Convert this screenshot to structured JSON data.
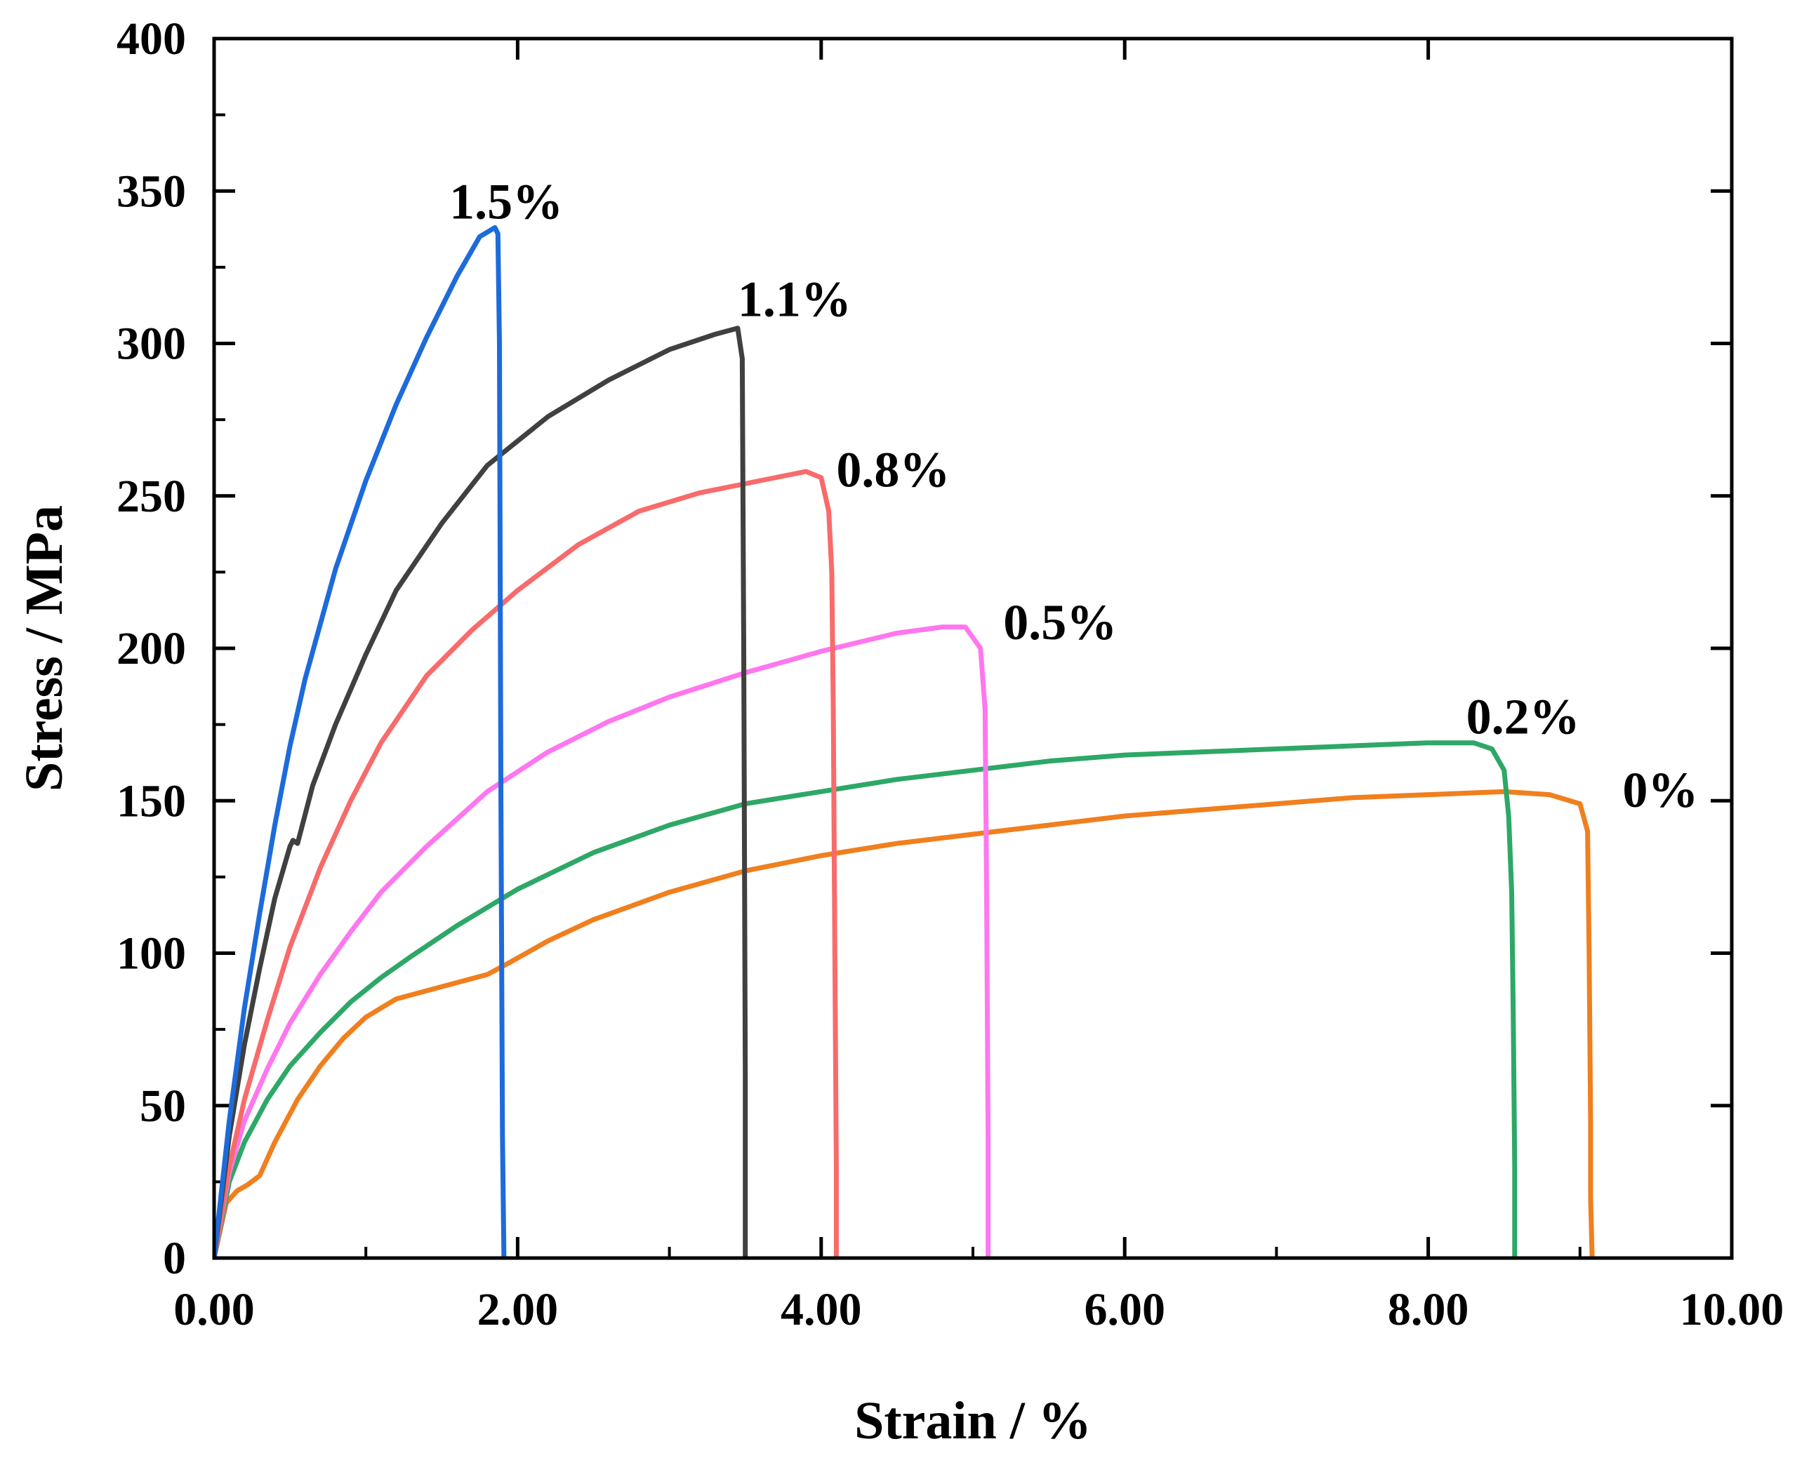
{
  "chart_data": {
    "type": "line",
    "title": "",
    "xlabel": "Strain / %",
    "ylabel": "Stress / MPa",
    "xlim": [
      0,
      10
    ],
    "ylim": [
      0,
      400
    ],
    "x_ticks": [
      0,
      2,
      4,
      6,
      8,
      10
    ],
    "x_tick_labels": [
      "0.00",
      "2.00",
      "4.00",
      "6.00",
      "8.00",
      "10.00"
    ],
    "y_ticks": [
      0,
      50,
      100,
      150,
      200,
      250,
      300,
      350,
      400
    ],
    "y_tick_labels": [
      "0",
      "50",
      "100",
      "150",
      "200",
      "250",
      "300",
      "350",
      "400"
    ],
    "grid": false,
    "series": [
      {
        "name": "0%",
        "label": "0%",
        "color": "#f07f1e",
        "label_at": [
          9.28,
          148
        ],
        "x": [
          0,
          0.08,
          0.15,
          0.22,
          0.3,
          0.4,
          0.55,
          0.7,
          0.85,
          1.0,
          1.2,
          1.5,
          1.8,
          1.95,
          2.2,
          2.5,
          3.0,
          3.5,
          4.0,
          4.5,
          5.0,
          5.5,
          6.0,
          6.5,
          7.0,
          7.5,
          8.0,
          8.5,
          8.8,
          9.0,
          9.05,
          9.06,
          9.07,
          9.07,
          9.08
        ],
        "y": [
          0,
          18,
          22,
          24,
          27,
          38,
          52,
          63,
          72,
          79,
          85,
          89,
          93,
          97,
          104,
          111,
          120,
          127,
          132,
          136,
          139,
          142,
          145,
          147,
          149,
          151,
          152,
          153,
          152,
          149,
          140,
          100,
          45,
          20,
          0
        ]
      },
      {
        "name": "0.2%",
        "label": "0.2%",
        "color": "#2da866",
        "label_at": [
          8.25,
          172
        ],
        "x": [
          0,
          0.1,
          0.2,
          0.35,
          0.5,
          0.7,
          0.9,
          1.1,
          1.3,
          1.6,
          2.0,
          2.5,
          3.0,
          3.5,
          4.0,
          4.5,
          5.0,
          5.5,
          6.0,
          6.5,
          7.0,
          7.5,
          8.0,
          8.3,
          8.42,
          8.5,
          8.53,
          8.55,
          8.56,
          8.57,
          8.57
        ],
        "y": [
          0,
          25,
          38,
          52,
          63,
          74,
          84,
          92,
          99,
          109,
          121,
          133,
          142,
          149,
          153,
          157,
          160,
          163,
          165,
          166,
          167,
          168,
          169,
          169,
          167,
          160,
          145,
          120,
          80,
          30,
          0
        ]
      },
      {
        "name": "0.5%",
        "label": "0.5%",
        "color": "#ff77ee",
        "label_at": [
          5.2,
          203
        ],
        "x": [
          0,
          0.1,
          0.2,
          0.35,
          0.5,
          0.7,
          0.9,
          1.1,
          1.4,
          1.8,
          2.2,
          2.6,
          3.0,
          3.5,
          4.0,
          4.5,
          4.8,
          4.95,
          5.05,
          5.08,
          5.09,
          5.1,
          5.1
        ],
        "y": [
          0,
          28,
          45,
          62,
          77,
          93,
          107,
          120,
          135,
          153,
          166,
          176,
          184,
          192,
          199,
          205,
          207,
          207,
          200,
          180,
          120,
          40,
          0
        ]
      },
      {
        "name": "0.8%",
        "label": "0.8%",
        "color": "#f86b6b",
        "label_at": [
          4.1,
          253
        ],
        "x": [
          0,
          0.1,
          0.2,
          0.35,
          0.5,
          0.7,
          0.9,
          1.1,
          1.4,
          1.7,
          2.0,
          2.4,
          2.8,
          3.2,
          3.6,
          3.9,
          4.0,
          4.05,
          4.07,
          4.08,
          4.09,
          4.1,
          4.1
        ],
        "y": [
          0,
          30,
          52,
          78,
          102,
          128,
          150,
          169,
          191,
          206,
          219,
          234,
          245,
          251,
          255,
          258,
          256,
          245,
          225,
          180,
          100,
          30,
          0
        ]
      },
      {
        "name": "1.1%",
        "label": "1.1%",
        "color": "#404040",
        "label_at": [
          3.45,
          309
        ],
        "x": [
          0,
          0.1,
          0.2,
          0.3,
          0.4,
          0.5,
          0.52,
          0.55,
          0.65,
          0.8,
          1.0,
          1.2,
          1.5,
          1.8,
          2.2,
          2.6,
          3.0,
          3.3,
          3.45,
          3.48,
          3.49,
          3.5,
          3.5
        ],
        "y": [
          0,
          40,
          70,
          95,
          118,
          135,
          137,
          136,
          155,
          175,
          198,
          219,
          241,
          260,
          276,
          288,
          298,
          303,
          305,
          295,
          200,
          60,
          0
        ]
      },
      {
        "name": "1.5%",
        "label": "1.5%",
        "color": "#1d6bdb",
        "label_at": [
          1.55,
          341
        ],
        "x": [
          0,
          0.1,
          0.2,
          0.3,
          0.4,
          0.5,
          0.6,
          0.8,
          1.0,
          1.2,
          1.4,
          1.6,
          1.75,
          1.85,
          1.87,
          1.88,
          1.89,
          1.9,
          1.91
        ],
        "y": [
          0,
          45,
          82,
          113,
          142,
          168,
          190,
          226,
          255,
          280,
          302,
          322,
          335,
          338,
          336,
          300,
          150,
          40,
          0
        ]
      }
    ]
  }
}
